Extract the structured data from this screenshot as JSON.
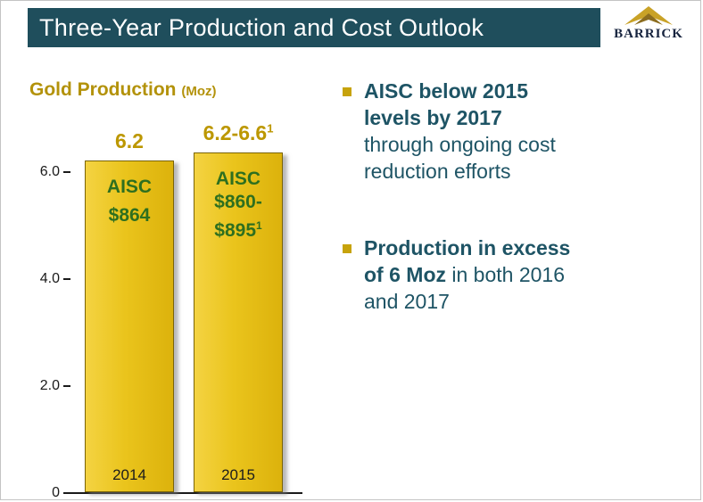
{
  "header": {
    "title": "Three-Year Production and Cost Outlook",
    "logo_text": "BARRICK"
  },
  "chart": {
    "heading": "Gold Production",
    "heading_unit": "(Moz)",
    "y_ticks": [
      "6.0",
      "4.0",
      "2.0",
      "0"
    ],
    "bars": [
      {
        "label": "6.2",
        "label_sup": "",
        "aisc_line1": "AISC",
        "aisc_line2": "$864",
        "aisc_sup": "",
        "year": "2014"
      },
      {
        "label": "6.2-6.6",
        "label_sup": "1",
        "aisc_line1": "AISC",
        "aisc_line2": "$860-",
        "aisc_line3": "$895",
        "aisc_sup": "1",
        "year": "2015"
      }
    ]
  },
  "bullets": [
    {
      "line1_bold": "AISC below 2015",
      "line2_bold": "levels by 2017",
      "line3": "through ongoing cost",
      "line4": "reduction efforts"
    },
    {
      "line1_bold": "Production in excess",
      "line2_bold": "of 6 Moz",
      "line2_regular": " in both 2016",
      "line3": "and 2017"
    }
  ],
  "chart_data": {
    "type": "bar",
    "title": "Gold Production (Moz)",
    "categories": [
      "2014",
      "2015"
    ],
    "values": [
      6.2,
      6.6
    ],
    "value_ranges": [
      [
        6.2,
        6.2
      ],
      [
        6.2,
        6.6
      ]
    ],
    "display_values": [
      6.2,
      6.35
    ],
    "value_labels": [
      "6.2",
      "6.2-6.6¹"
    ],
    "bar_annotations": [
      "AISC $864",
      "AISC $860-$895¹"
    ],
    "yticks": [
      0,
      2.0,
      4.0,
      6.0
    ],
    "ylim": [
      0,
      6.6
    ],
    "grid": false,
    "legend": false,
    "bar_color": "#E9C41C",
    "annotation_color": "#2E6F1F"
  },
  "colors": {
    "header_bar": "#1F4E5C",
    "title_text": "#FFFFFF",
    "gold_heading": "#B3920A",
    "bullet_text": "#1E5465",
    "bullet_marker": "#C7A30C",
    "bar_fill": "#E9C41C",
    "aisc_text": "#2E6F1F",
    "value_label": "#BC9700"
  }
}
